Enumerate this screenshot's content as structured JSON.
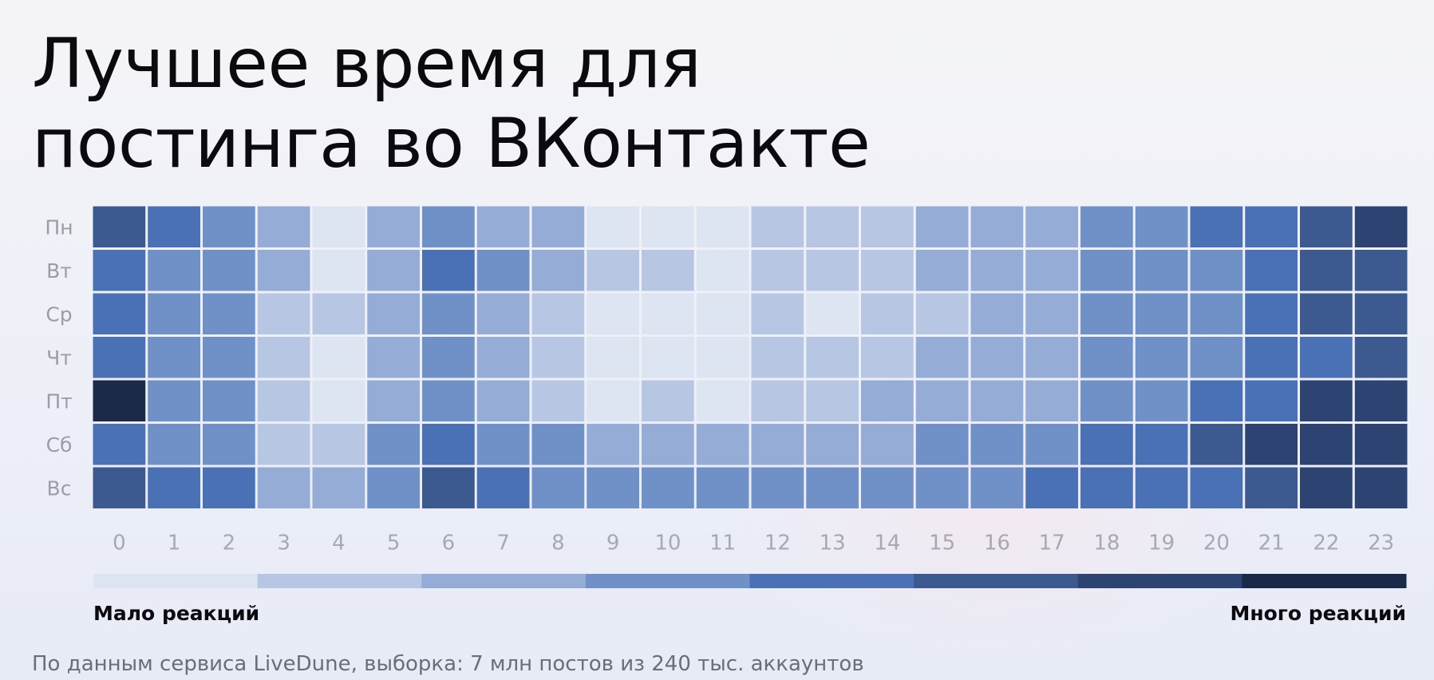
{
  "title": "Лучшее время для\nпостинга во ВКонтакте",
  "footnote": "По данным сервиса LiveDune, выборка: 7 млн постов из 240 тыс. аккаунтов",
  "colors": {
    "scale": [
      "#dde4f2",
      "#b7c7e3",
      "#95acd6",
      "#7090c8",
      "#4a71b6",
      "#3c5990",
      "#2d4472",
      "#1c2a4a"
    ],
    "day_label": "#9a9ca6",
    "hour_label": "#a6a8b2",
    "legend_text": "#0b0b0f"
  },
  "chart_data": {
    "type": "heatmap",
    "title": "",
    "xlabel": "",
    "ylabel": "",
    "rows": [
      "Пн",
      "Вт",
      "Ср",
      "Чт",
      "Пт",
      "Сб",
      "Вс"
    ],
    "columns": [
      "0",
      "1",
      "2",
      "3",
      "4",
      "5",
      "6",
      "7",
      "8",
      "9",
      "10",
      "11",
      "12",
      "13",
      "14",
      "15",
      "16",
      "17",
      "18",
      "19",
      "20",
      "21",
      "22",
      "23"
    ],
    "value_range": [
      0,
      7
    ],
    "values": [
      [
        5,
        4,
        3,
        2,
        0,
        2,
        3,
        2,
        2,
        0,
        0,
        0,
        1,
        1,
        1,
        2,
        2,
        2,
        3,
        3,
        4,
        4,
        5,
        6
      ],
      [
        4,
        3,
        3,
        2,
        0,
        2,
        4,
        3,
        2,
        1,
        1,
        0,
        1,
        1,
        1,
        2,
        2,
        2,
        3,
        3,
        3,
        4,
        5,
        5
      ],
      [
        4,
        3,
        3,
        1,
        1,
        2,
        3,
        2,
        1,
        0,
        0,
        0,
        1,
        0,
        1,
        1,
        2,
        2,
        3,
        3,
        3,
        4,
        5,
        5
      ],
      [
        4,
        3,
        3,
        1,
        0,
        2,
        3,
        2,
        1,
        0,
        0,
        0,
        1,
        1,
        1,
        2,
        2,
        2,
        3,
        3,
        3,
        4,
        4,
        5
      ],
      [
        7,
        3,
        3,
        1,
        0,
        2,
        3,
        2,
        1,
        0,
        1,
        0,
        1,
        1,
        2,
        2,
        2,
        2,
        3,
        3,
        4,
        4,
        6,
        6
      ],
      [
        4,
        3,
        3,
        1,
        1,
        3,
        4,
        3,
        3,
        2,
        2,
        2,
        2,
        2,
        2,
        3,
        3,
        3,
        4,
        4,
        5,
        6,
        6,
        6
      ],
      [
        5,
        4,
        4,
        2,
        2,
        3,
        5,
        4,
        3,
        3,
        3,
        3,
        3,
        3,
        3,
        3,
        3,
        4,
        4,
        4,
        4,
        5,
        6,
        6
      ]
    ],
    "legend": {
      "low_label": "Мало реакций",
      "high_label": "Много реакций",
      "steps": 8
    },
    "grid": false
  }
}
